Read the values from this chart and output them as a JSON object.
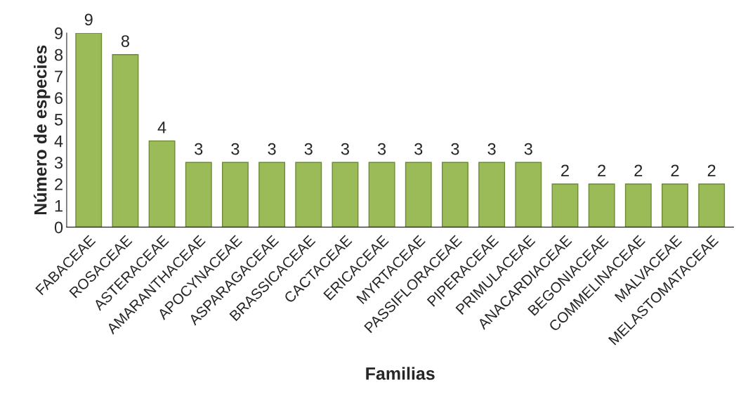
{
  "chart_data": {
    "type": "bar",
    "categories": [
      "FABACEAE",
      "ROSACEAE",
      "ASTERACEAE",
      "AMARANTHACEAE",
      "APOCYNACEAE",
      "ASPARAGACEAE",
      "BRASSICACEAE",
      "CACTACEAE",
      "ERICACEAE",
      "MYRTACEAE",
      "PASSIFLORACEAE",
      "PIPERACEAE",
      "PRIMULACEAE",
      "ANACARDIACEAE",
      "BEGONIACEAE",
      "COMMELINACEAE",
      "MALVACEAE",
      "MELASTOMATACEAE"
    ],
    "values": [
      9,
      8,
      4,
      3,
      3,
      3,
      3,
      3,
      3,
      3,
      3,
      3,
      3,
      2,
      2,
      2,
      2,
      2
    ],
    "color": "#9bbb59",
    "xlabel": "Familias",
    "ylabel": "Número de especies",
    "ylim": [
      0,
      9
    ],
    "yticks": [
      0,
      1,
      2,
      3,
      4,
      5,
      6,
      7,
      8,
      9
    ],
    "grid": false,
    "data_labels": true
  }
}
